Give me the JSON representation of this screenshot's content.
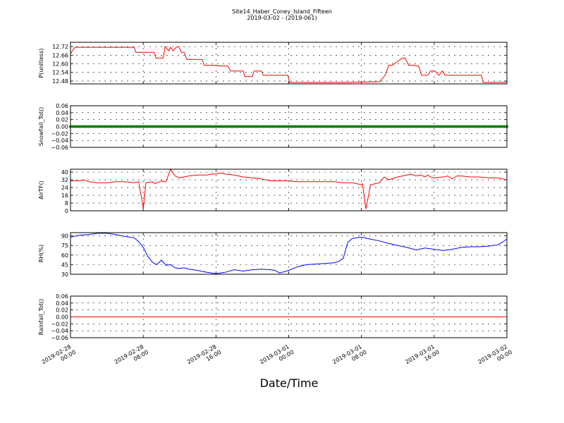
{
  "figure": {
    "title": "Site14_Haber_Coney_Island_Fifteen",
    "subtitle": "2019-03-02 - (2019-061)",
    "xlabel": "Date/Time",
    "x_ticks": [
      {
        "line1": "2019-02-28",
        "line2": "00:00",
        "hours": 0
      },
      {
        "line1": "2019-02-28",
        "line2": "08:00",
        "hours": 8
      },
      {
        "line1": "2019-02-28",
        "line2": "16:00",
        "hours": 16
      },
      {
        "line1": "2019-03-01",
        "line2": "00:00",
        "hours": 24
      },
      {
        "line1": "2019-03-01",
        "line2": "08:00",
        "hours": 32
      },
      {
        "line1": "2019-03-01",
        "line2": "16:00",
        "hours": 40
      },
      {
        "line1": "2019-03-02",
        "line2": "00:00",
        "hours": 48
      }
    ]
  },
  "chart_data": [
    {
      "type": "line",
      "ylabel": "P(unitless)",
      "color": "#ff0000",
      "marker": "none",
      "ylim": [
        12.46,
        12.75
      ],
      "yticks": [
        12.48,
        12.54,
        12.6,
        12.66,
        12.72
      ],
      "ytick_labels": [
        "12.48",
        "12.54",
        "12.60",
        "12.66",
        "12.72"
      ],
      "grid": true,
      "x_unit": "hours since 2019-02-28 00:00",
      "x": [
        0,
        0.4,
        0.6,
        3,
        7,
        7.2,
        9.2,
        9.4,
        10.2,
        10.4,
        10.8,
        11,
        11.3,
        11.6,
        11.9,
        12.2,
        12.5,
        12.8,
        13,
        14.5,
        14.7,
        16,
        16.4,
        17.3,
        17.6,
        19,
        19.2,
        20,
        20.2,
        21,
        21.2,
        22,
        23,
        23.9,
        24.1,
        26,
        30,
        34,
        34.6,
        35,
        35.4,
        36.5,
        36.8,
        37.2,
        37.6,
        38.3,
        38.6,
        39.3,
        39.6,
        40.1,
        40.5,
        40.9,
        41.2,
        41.5,
        42,
        45,
        45.2,
        45.4,
        46.5,
        47.5,
        48
      ],
      "y": [
        12.67,
        12.71,
        12.715,
        12.715,
        12.715,
        12.68,
        12.68,
        12.64,
        12.64,
        12.72,
        12.69,
        12.715,
        12.69,
        12.715,
        12.72,
        12.68,
        12.68,
        12.63,
        12.63,
        12.63,
        12.59,
        12.59,
        12.585,
        12.585,
        12.55,
        12.55,
        12.51,
        12.51,
        12.55,
        12.55,
        12.52,
        12.52,
        12.52,
        12.52,
        12.47,
        12.47,
        12.47,
        12.475,
        12.52,
        12.59,
        12.59,
        12.64,
        12.64,
        12.59,
        12.59,
        12.585,
        12.52,
        12.52,
        12.55,
        12.55,
        12.52,
        12.55,
        12.52,
        12.52,
        12.52,
        12.52,
        12.52,
        12.47,
        12.47,
        12.47,
        12.47
      ]
    },
    {
      "type": "scatter",
      "ylabel": "Snowfall_Tot()",
      "color": "#008000",
      "marker": "dot",
      "ylim": [
        -0.06,
        0.06
      ],
      "yticks": [
        -0.06,
        -0.04,
        -0.02,
        0.0,
        0.02,
        0.04,
        0.06
      ],
      "ytick_labels": [
        "−0.06",
        "−0.04",
        "−0.02",
        "0.00",
        "0.02",
        "0.04",
        "0.06"
      ],
      "grid": true,
      "x_unit": "hours since 2019-02-28 00:00",
      "constant_value": 0.0,
      "x_range": [
        0,
        48
      ],
      "sample_interval_hours": 0.25
    },
    {
      "type": "line",
      "ylabel": "AirTF()",
      "color": "#ff0000",
      "marker": "none",
      "ylim": [
        0,
        43
      ],
      "yticks": [
        0,
        8,
        16,
        24,
        32,
        40
      ],
      "ytick_labels": [
        "0",
        "8",
        "16",
        "24",
        "32",
        "40"
      ],
      "grid": true,
      "x_unit": "hours since 2019-02-28 00:00",
      "x": [
        0,
        1,
        1.5,
        2,
        3,
        4,
        5,
        6,
        7,
        7.5,
        7.8,
        8,
        8.3,
        9,
        9.3,
        10,
        10.2,
        10.5,
        11,
        11.5,
        12,
        13,
        14,
        15,
        15.5,
        16,
        16.5,
        17,
        18,
        19,
        20,
        21,
        22,
        23,
        24,
        25,
        26,
        27,
        28,
        29,
        30,
        31,
        31.5,
        32,
        32.1,
        32.5,
        33,
        33.5,
        34,
        34.5,
        35,
        36,
        37,
        37.5,
        38,
        38.5,
        39,
        39.3,
        39.6,
        40,
        41,
        41.5,
        42,
        42.5,
        43,
        44,
        45,
        46,
        47,
        48
      ],
      "y": [
        31,
        31,
        32,
        30,
        29,
        29,
        30,
        30,
        29,
        30,
        14,
        2,
        29,
        30,
        28,
        31,
        30,
        30,
        43,
        36,
        34,
        36,
        37,
        37,
        38,
        38,
        39,
        38,
        37,
        35,
        34,
        33,
        31,
        31,
        31,
        30,
        30,
        30,
        30,
        30,
        29,
        29,
        28,
        27,
        28,
        2,
        27,
        28,
        29,
        35,
        32,
        35,
        37,
        38,
        36,
        37,
        35,
        37,
        35,
        34,
        35,
        36,
        33,
        36,
        36,
        35,
        35,
        34,
        34,
        32
      ]
    },
    {
      "type": "line",
      "ylabel": "RH(%)",
      "color": "#0000ff",
      "marker": "none",
      "ylim": [
        30,
        95
      ],
      "yticks": [
        30,
        45,
        60,
        75,
        90
      ],
      "ytick_labels": [
        "30",
        "45",
        "60",
        "75",
        "90"
      ],
      "grid": true,
      "x_unit": "hours since 2019-02-28 00:00",
      "x": [
        0,
        1,
        2,
        3,
        4,
        5,
        6,
        7,
        7.5,
        8,
        8.5,
        9,
        9.5,
        10,
        10.5,
        11,
        11.5,
        12,
        12.5,
        13,
        13.5,
        14,
        15,
        16,
        17,
        18,
        19,
        20,
        21,
        22,
        22.5,
        23,
        24,
        25,
        26,
        27,
        28,
        29,
        29.5,
        30,
        30.5,
        31,
        32,
        33,
        34,
        35,
        36,
        37,
        38,
        39,
        40,
        41,
        42,
        43,
        44,
        45,
        46,
        47,
        47.5,
        48
      ],
      "y": [
        88,
        91,
        92,
        94,
        94,
        92,
        89,
        87,
        81,
        72,
        58,
        49,
        45,
        52,
        44,
        45,
        40,
        39,
        40,
        38,
        37,
        36,
        33,
        31,
        33,
        37,
        35,
        37,
        38,
        37,
        36,
        32,
        36,
        42,
        45,
        46,
        47,
        48,
        50,
        55,
        80,
        86,
        88,
        85,
        82,
        78,
        75,
        72,
        68,
        71,
        69,
        67,
        69,
        72,
        73,
        73,
        74,
        76,
        80,
        85
      ]
    },
    {
      "type": "line",
      "ylabel": "Rainfall_Tot()",
      "color": "#ff0000",
      "marker": "none",
      "ylim": [
        -0.06,
        0.06
      ],
      "yticks": [
        -0.06,
        -0.04,
        -0.02,
        0.0,
        0.02,
        0.04,
        0.06
      ],
      "ytick_labels": [
        "−0.06",
        "−0.04",
        "−0.02",
        "0.00",
        "0.02",
        "0.04",
        "0.06"
      ],
      "grid": true,
      "x_unit": "hours since 2019-02-28 00:00",
      "x": [
        0,
        48
      ],
      "y": [
        0,
        0
      ]
    }
  ]
}
